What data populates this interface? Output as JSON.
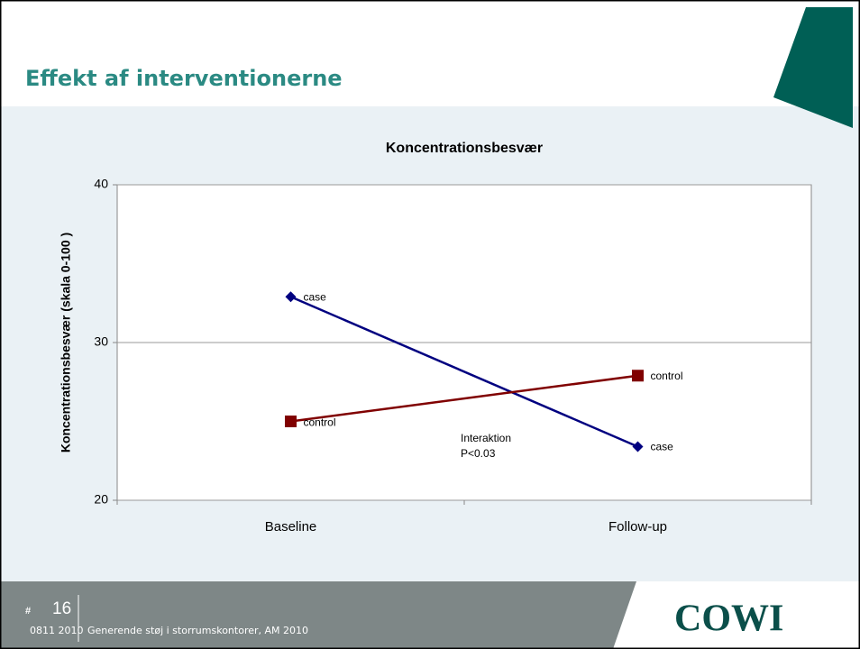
{
  "slide": {
    "title": "Effekt af interventionerne",
    "footer": {
      "symbol": "#",
      "page": "16",
      "date": "0811 2010",
      "text": "Generende støj i storrumskontorer, AM 2010",
      "logo": "COWI"
    }
  },
  "chart_data": {
    "type": "line",
    "title": "Koncentrationsbesvær",
    "y_label": "Koncentrationsbesvær (skala 0-100 )",
    "categories": [
      "Baseline",
      "Follow-up"
    ],
    "series": [
      {
        "name": "case",
        "color": "#000080",
        "marker": "diamond",
        "values": [
          32.9,
          23.4
        ]
      },
      {
        "name": "control",
        "color": "#800000",
        "marker": "square",
        "values": [
          25.0,
          27.9
        ]
      }
    ],
    "ylim": [
      20,
      40
    ],
    "yticks": [
      20,
      30,
      40
    ],
    "grid": true,
    "annotation": [
      "Interaktion",
      "P<0.03"
    ]
  }
}
